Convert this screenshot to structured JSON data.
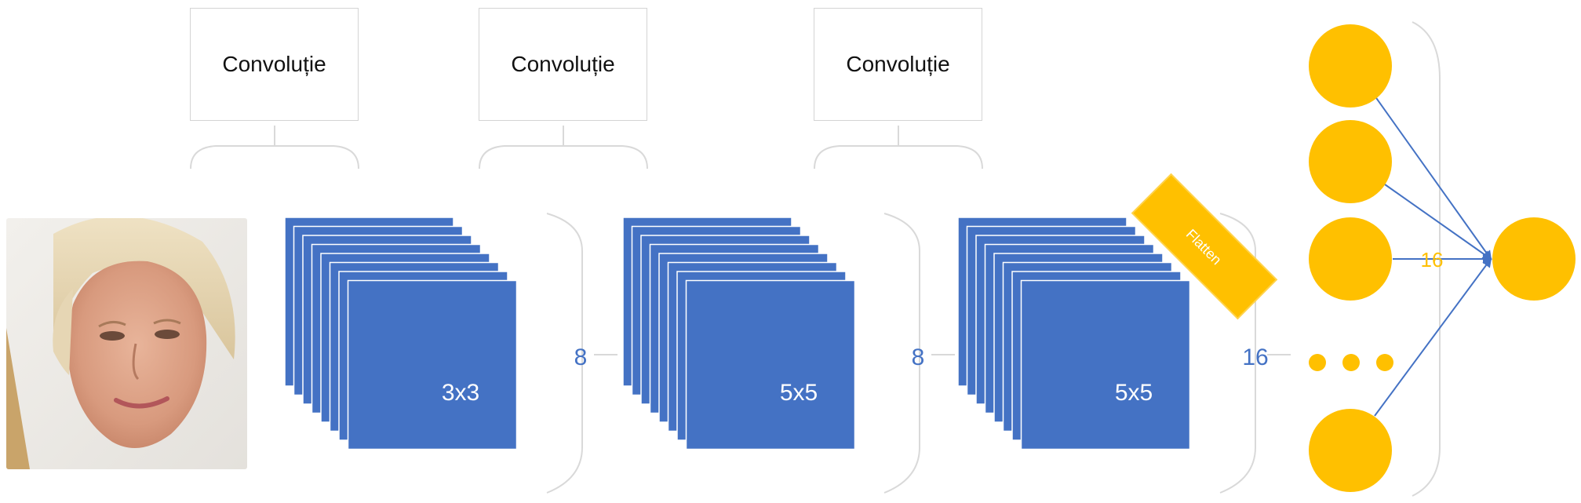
{
  "diagram": {
    "conv_label": "Convoluție",
    "stages": [
      {
        "kernel": "3x3",
        "channels": "8"
      },
      {
        "kernel": "5x5",
        "channels": "8"
      },
      {
        "kernel": "5x5",
        "channels": "16"
      }
    ],
    "flatten_label": "Flatten",
    "dense_units": "16",
    "colors": {
      "feature_map": "#4472c4",
      "neuron": "#ffc000",
      "bracket": "#d9d9d9",
      "channel_text": "#4472c4",
      "connection": "#4472c4"
    }
  }
}
